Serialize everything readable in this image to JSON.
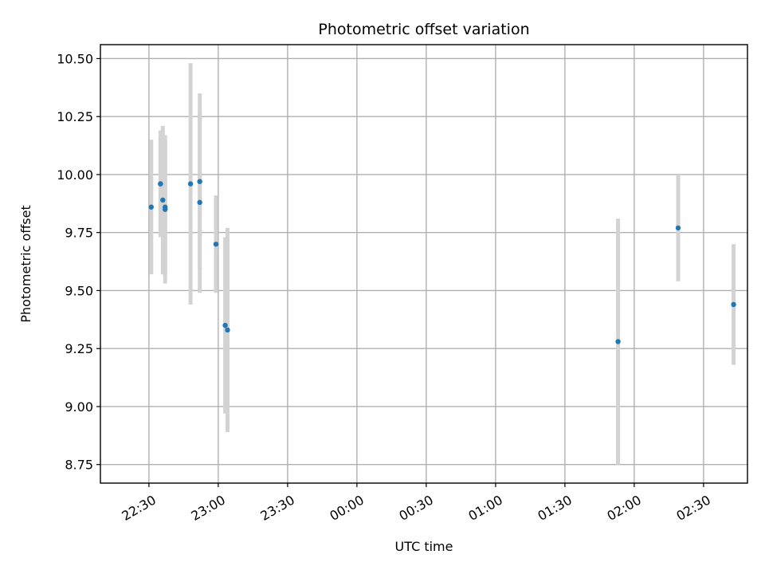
{
  "chart_data": {
    "type": "scatter",
    "title": "Photometric offset variation",
    "xlabel": "UTC time",
    "ylabel": "Photometric offset",
    "xlim": [
      "22:09",
      "02:49"
    ],
    "ylim": [
      8.67,
      10.56
    ],
    "x_ticks": [
      "22:30",
      "23:00",
      "23:30",
      "00:00",
      "00:30",
      "01:00",
      "01:30",
      "02:00",
      "02:30"
    ],
    "y_ticks": [
      "8.75",
      "9.00",
      "9.25",
      "9.50",
      "9.75",
      "10.00",
      "10.25",
      "10.50"
    ],
    "grid": true,
    "points": [
      {
        "time": "22:31",
        "y": 9.86,
        "err": 0.29
      },
      {
        "time": "22:35",
        "y": 9.96,
        "err": 0.23
      },
      {
        "time": "22:35",
        "y": 9.96,
        "err": 0.2
      },
      {
        "time": "22:36",
        "y": 9.89,
        "err": 0.32
      },
      {
        "time": "22:37",
        "y": 9.86,
        "err": 0.29
      },
      {
        "time": "22:37",
        "y": 9.85,
        "err": 0.32
      },
      {
        "time": "22:48",
        "y": 9.96,
        "err": 0.52
      },
      {
        "time": "22:52",
        "y": 9.97,
        "err": 0.38
      },
      {
        "time": "22:52",
        "y": 9.88,
        "err": 0.39
      },
      {
        "time": "22:59",
        "y": 9.7,
        "err": 0.21
      },
      {
        "time": "23:03",
        "y": 9.35,
        "err": 0.38
      },
      {
        "time": "23:04",
        "y": 9.33,
        "err": 0.44
      },
      {
        "time": "01:53",
        "y": 9.28,
        "err": 0.53
      },
      {
        "time": "02:19",
        "y": 9.77,
        "err": 0.23
      },
      {
        "time": "02:43",
        "y": 9.44,
        "err": 0.26
      }
    ]
  }
}
